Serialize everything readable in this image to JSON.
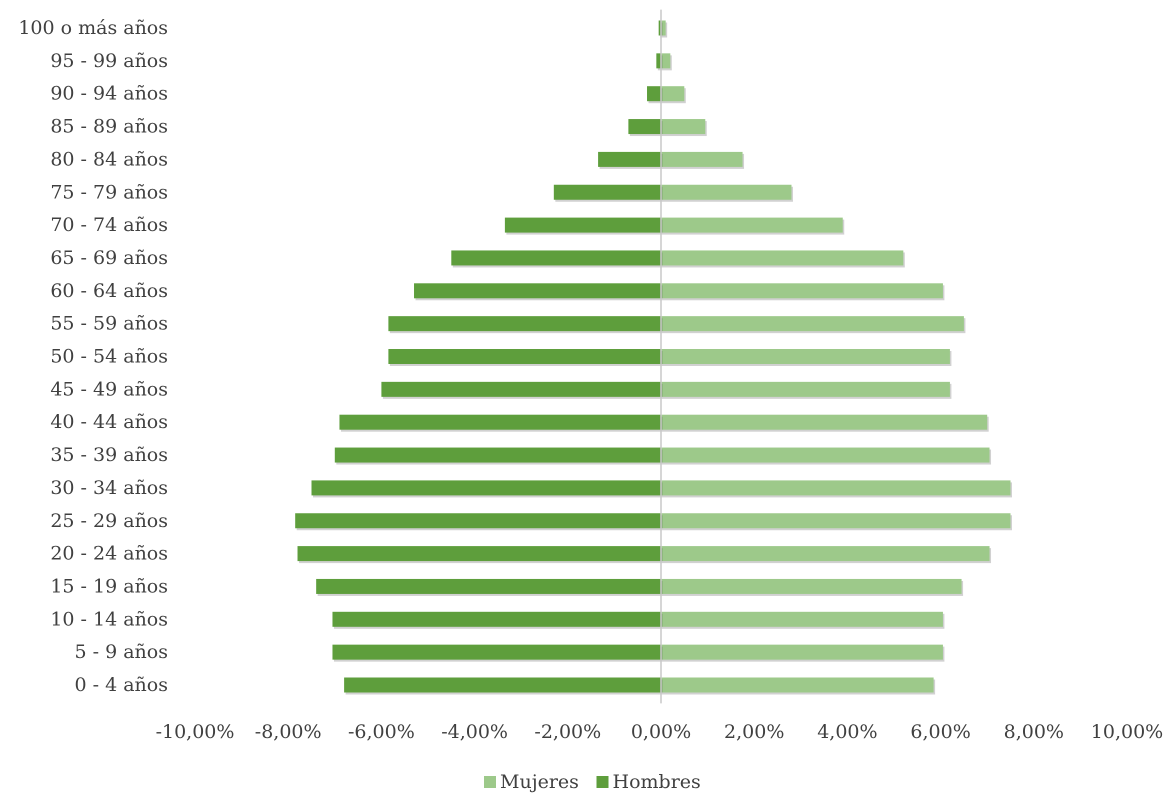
{
  "chart_data": {
    "type": "bar",
    "orientation": "horizontal",
    "subtype": "population-pyramid",
    "categories": [
      "100 o más años",
      "95 - 99 años",
      "90 - 94 años",
      "85 - 89 años",
      "80 - 84 años",
      "75 - 79 años",
      "70 - 74 años",
      "65 - 69 años",
      "60 - 64 años",
      "55 - 59 años",
      "50 - 54 años",
      "45 - 49 años",
      "40 - 44 años",
      "35 - 39 años",
      "30 - 34 años",
      "25 - 29 años",
      "20 - 24 años",
      "15 - 19 años",
      "10 - 14 años",
      "5 - 9 años",
      "0 - 4 años"
    ],
    "series": [
      {
        "name": "Mujeres",
        "color": "#9dc98a",
        "values": [
          0.1,
          0.2,
          0.5,
          0.95,
          1.75,
          2.8,
          3.9,
          5.2,
          6.05,
          6.5,
          6.2,
          6.2,
          7.0,
          7.05,
          7.5,
          7.5,
          7.05,
          6.45,
          6.05,
          6.05,
          5.85
        ]
      },
      {
        "name": "Hombres",
        "color": "#5e9e3c",
        "values": [
          -0.05,
          -0.1,
          -0.3,
          -0.7,
          -1.35,
          -2.3,
          -3.35,
          -4.5,
          -5.3,
          -5.85,
          -5.85,
          -6.0,
          -6.9,
          -7.0,
          -7.5,
          -7.85,
          -7.8,
          -7.4,
          -7.05,
          -7.05,
          -6.8
        ]
      }
    ],
    "xlim": [
      -10,
      10
    ],
    "xticks": [
      "-10,00%",
      "-8,00%",
      "-6,00%",
      "-4,00%",
      "-2,00%",
      "0,00%",
      "2,00%",
      "4,00%",
      "6,00%",
      "8,00%",
      "10,00%"
    ],
    "xtick_values": [
      -10,
      -8,
      -6,
      -4,
      -2,
      0,
      2,
      4,
      6,
      8,
      10
    ],
    "grid": false,
    "legend": {
      "position": "bottom",
      "items": [
        "Mujeres",
        "Hombres"
      ]
    },
    "title": "",
    "xlabel": "",
    "ylabel": ""
  }
}
